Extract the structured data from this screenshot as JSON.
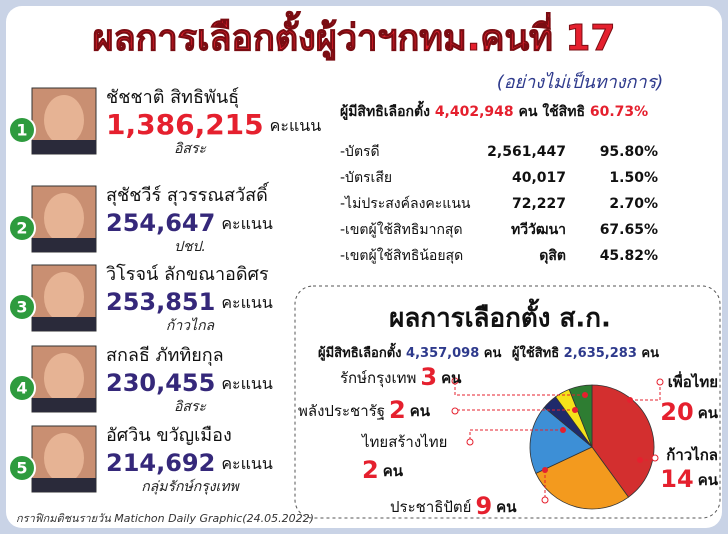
{
  "header": {
    "title": "ผลการเลือกตั้งผู้ว่าฯกทม.คนที่ 17",
    "subtitle": "(อย่างไม่เป็นทางการ)"
  },
  "candidates": [
    {
      "rank": "1",
      "name": "ชัชชาติ สิทธิพันธุ์",
      "votes": "1,386,215",
      "unit": "คะแนน",
      "party": "อิสระ"
    },
    {
      "rank": "2",
      "name": "สุชัชวีร์ สุวรรณสวัสดิ์",
      "votes": "254,647",
      "unit": "คะแนน",
      "party": "ปชป."
    },
    {
      "rank": "3",
      "name": "วิโรจน์ ลักขณาอดิศร",
      "votes": "253,851",
      "unit": "คะแนน",
      "party": "ก้าวไกล"
    },
    {
      "rank": "4",
      "name": "สกลธี ภัททิยกุล",
      "votes": "230,455",
      "unit": "คะแนน",
      "party": "อิสระ"
    },
    {
      "rank": "5",
      "name": "อัศวิน ขวัญเมือง",
      "votes": "214,692",
      "unit": "คะแนน",
      "party": "กลุ่มรักษ์กรุงเทพ"
    }
  ],
  "summary": {
    "eligible_label": "ผู้มีสิทธิเลือกตั้ง",
    "eligible": "4,402,948",
    "eligible_unit": "คน",
    "turnout_label": "ใช้สิทธิ",
    "turnout": "60.73%",
    "rows": [
      [
        "-บัตรดี",
        "2,561,447",
        "95.80%"
      ],
      [
        "-บัตรเสีย",
        "40,017",
        "1.50%"
      ],
      [
        "-ไม่ประสงค์ลงคะแนน",
        "72,227",
        "2.70%"
      ],
      [
        "-เขตผู้ใช้สิทธิมากสุด",
        "ทวีวัฒนา",
        "67.65%"
      ],
      [
        "-เขตผู้ใช้สิทธิน้อยสุด",
        "ดุสิต",
        "45.82%"
      ]
    ]
  },
  "council": {
    "title": "ผลการเลือกตั้ง ส.ก.",
    "eligible_label": "ผู้มีสิทธิเลือกตั้ง",
    "eligible": "4,357,098",
    "unit": "คน",
    "voters_label": "ผู้ใช้สิทธิ",
    "voters": "2,635,283"
  },
  "chart_data": {
    "type": "pie",
    "categories": [
      "เพื่อไทย",
      "ก้าวไกล",
      "ประชาธิปัตย์",
      "ไทยสร้างไทย",
      "พลังประชารัฐ",
      "รักษ์กรุงเทพ"
    ],
    "values": [
      20,
      14,
      9,
      2,
      2,
      3
    ],
    "colors": [
      "#d32f2f",
      "#f39a1e",
      "#3d8fd6",
      "#1f2a6b",
      "#f5e21a",
      "#2e7d32"
    ],
    "unit": "คน"
  },
  "footer": "กราฟิกมติชนรายวัน Matichon Daily Graphic(24.05.2022)"
}
